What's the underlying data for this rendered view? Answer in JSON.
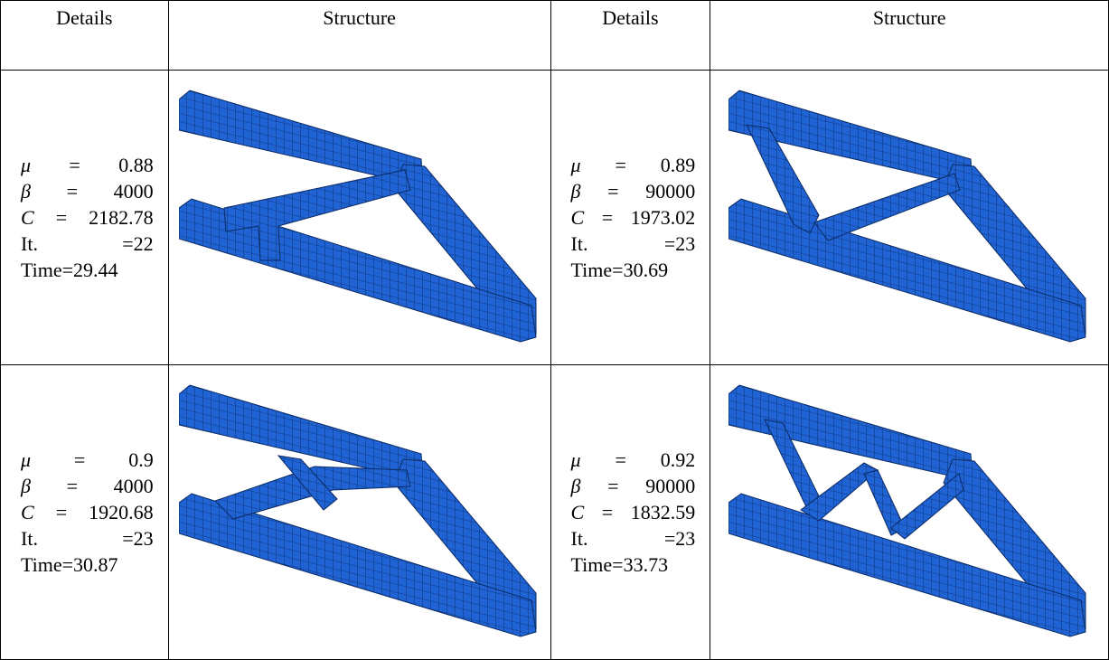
{
  "table": {
    "header": [
      "Details",
      "Structure",
      "Details",
      "Structure"
    ],
    "rows": [
      [
        [
          [
            "μ",
            "=",
            "0.88"
          ],
          [
            "β",
            "=",
            "4000"
          ],
          [
            "C",
            "=",
            "2182.78"
          ],
          [
            "It.",
            "=22"
          ],
          [
            "Time=29.44"
          ]
        ],
        [
          [
            "μ",
            "=",
            "0.89"
          ],
          [
            "β",
            "=",
            "90000"
          ],
          [
            "C",
            "=",
            "1973.02"
          ],
          [
            "It.",
            "=23"
          ],
          [
            "Time=30.69"
          ]
        ]
      ],
      [
        [
          [
            "μ",
            "=",
            "0.9"
          ],
          [
            "β",
            "=",
            "4000"
          ],
          [
            "C",
            "=",
            "1920.68"
          ],
          [
            "It.",
            "=23"
          ],
          [
            "Time=30.87"
          ]
        ],
        [
          [
            "μ",
            "=",
            "0.92"
          ],
          [
            "β",
            "=",
            "90000"
          ],
          [
            "C",
            "=",
            "1832.59"
          ],
          [
            "It.",
            "=23"
          ],
          [
            "Time=33.73"
          ]
        ]
      ]
    ]
  }
}
